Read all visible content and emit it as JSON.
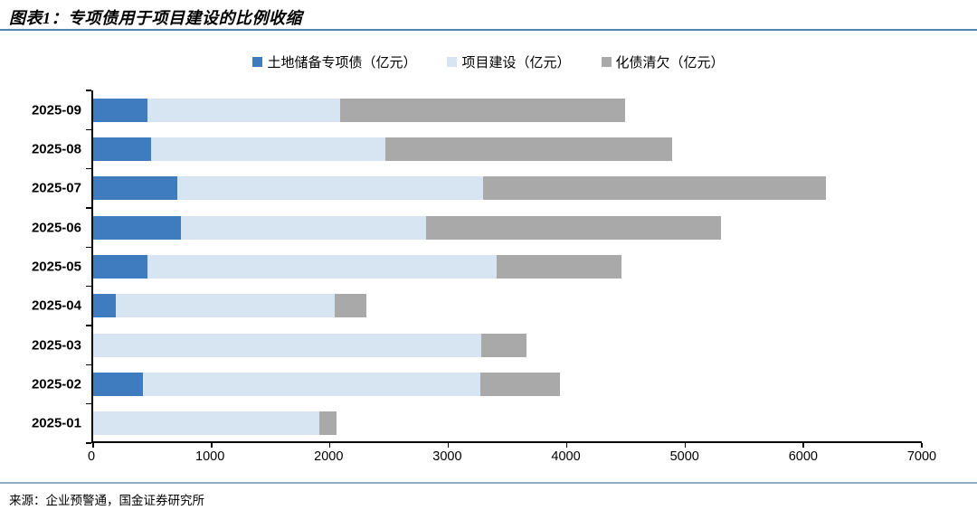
{
  "title": "图表1：专项债用于项目建设的比例收缩",
  "source": "来源：企业预警通，国金证券研究所",
  "colors": {
    "series_land_reserve": "#3e7cbf",
    "series_project_construction": "#d7e4f2",
    "series_debt_resolution": "#a9a9a9",
    "title_rule": "#4e86b0",
    "footer_rule": "#8fafc9",
    "axis": "#000000"
  },
  "legend": [
    {
      "label": "土地储备专项债（亿元）",
      "color": "#3e7cbf"
    },
    {
      "label": "项目建设（亿元）",
      "color": "#d7e4f2"
    },
    {
      "label": "化债清欠（亿元）",
      "color": "#a9a9a9"
    }
  ],
  "chart_data": {
    "type": "bar",
    "orientation": "horizontal",
    "stacked": true,
    "title": "专项债用于项目建设的比例收缩",
    "categories": [
      "2025-09",
      "2025-08",
      "2025-07",
      "2025-06",
      "2025-05",
      "2025-04",
      "2025-03",
      "2025-02",
      "2025-01"
    ],
    "series": [
      {
        "name": "土地储备专项债（亿元）",
        "color": "#3e7cbf",
        "values": [
          460,
          490,
          710,
          740,
          460,
          190,
          0,
          420,
          0
        ]
      },
      {
        "name": "项目建设（亿元）",
        "color": "#d7e4f2",
        "values": [
          1630,
          1980,
          2580,
          2070,
          2950,
          1850,
          3280,
          2850,
          1910
        ]
      },
      {
        "name": "化债清欠（亿元）",
        "color": "#a9a9a9",
        "values": [
          2400,
          2420,
          2900,
          2490,
          1050,
          270,
          380,
          670,
          145
        ]
      }
    ],
    "xlim": [
      0,
      7000
    ],
    "x_ticks": [
      0,
      1000,
      2000,
      3000,
      4000,
      5000,
      6000,
      7000
    ],
    "xlabel": "",
    "ylabel": "",
    "grid": false,
    "legend_position": "top-center",
    "units": "亿元"
  }
}
